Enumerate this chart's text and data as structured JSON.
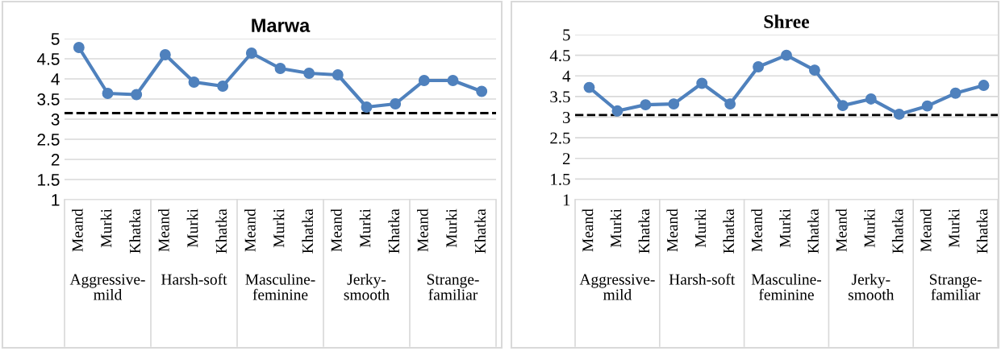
{
  "chart_data": [
    {
      "type": "line",
      "title": "Marwa",
      "categories": [
        "Meand",
        "Murki",
        "Khatka",
        "Meand",
        "Murki",
        "Khatka",
        "Meand",
        "Murki",
        "Khatka",
        "Meand",
        "Murki",
        "Khatka",
        "Meand",
        "Murki",
        "Khatka"
      ],
      "series": [
        {
          "color": "#4f81bd",
          "values": [
            4.78,
            3.64,
            3.61,
            4.6,
            3.92,
            3.82,
            4.64,
            4.26,
            4.14,
            4.1,
            3.3,
            3.38,
            3.96,
            3.96,
            3.69
          ]
        }
      ],
      "ylim": [
        1,
        5
      ],
      "yticks": [
        1,
        1.5,
        2,
        2.5,
        3,
        3.5,
        4,
        4.5,
        5
      ],
      "grid": "y",
      "marker": "circle",
      "line_style": "solid",
      "legend": false,
      "ref_lines": [
        {
          "axis": "y",
          "value": 3.15,
          "color": "#000000",
          "line_style": "dashed"
        }
      ],
      "annotations": [
        "Aggressive-\nmild",
        "Harsh-soft",
        "Masculine-\nfeminine",
        "Jerky-\nsmooth",
        "Strange-\nfamiliar"
      ]
    },
    {
      "type": "line",
      "title": "Shree",
      "categories": [
        "Meand",
        "Murki",
        "Khatka",
        "Meand",
        "Murki",
        "Khatka",
        "Meand",
        "Murki",
        "Khatka",
        "Meand",
        "Murki",
        "Khatka",
        "Meand",
        "Murki",
        "Khatka"
      ],
      "series": [
        {
          "color": "#4f81bd",
          "values": [
            3.72,
            3.15,
            3.3,
            3.32,
            3.82,
            3.32,
            4.22,
            4.5,
            4.14,
            3.28,
            3.44,
            3.07,
            3.27,
            3.58,
            3.77
          ]
        }
      ],
      "ylim": [
        1,
        5
      ],
      "yticks": [
        1,
        1.5,
        2,
        2.5,
        3,
        3.5,
        4,
        4.5,
        5
      ],
      "grid": "y",
      "marker": "circle",
      "line_style": "solid",
      "legend": false,
      "ref_lines": [
        {
          "axis": "y",
          "value": 3.05,
          "color": "#000000",
          "line_style": "dashed"
        }
      ],
      "annotations": [
        "Aggressive-\nmild",
        "Harsh-soft",
        "Masculine-\nfeminine",
        "Jerky-\nsmooth",
        "Strange-\nfamiliar"
      ]
    }
  ]
}
